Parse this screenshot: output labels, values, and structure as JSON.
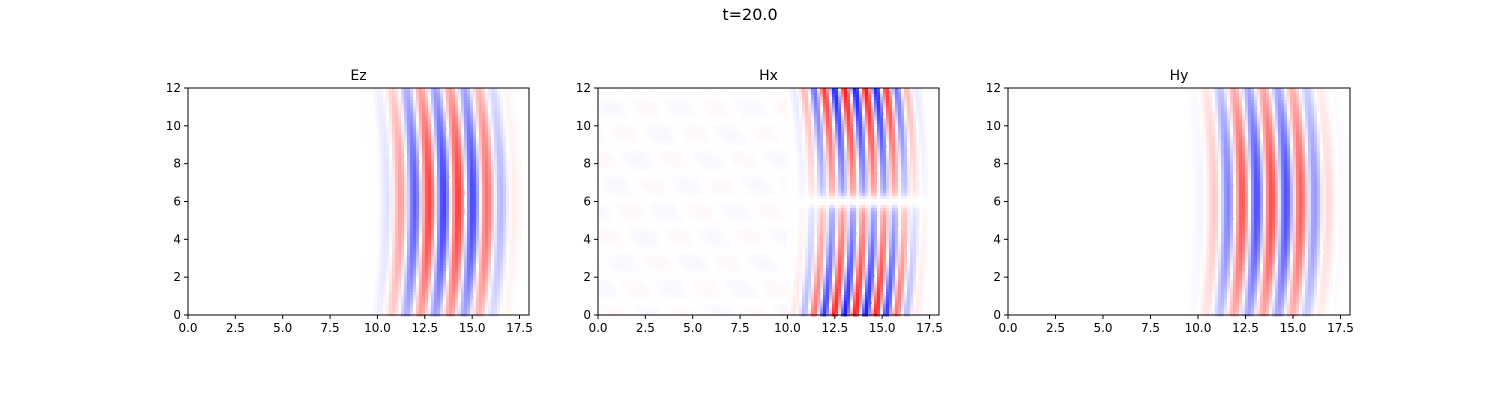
{
  "figure": {
    "suptitle": "t=20.0",
    "colormap": "bwr",
    "colors": {
      "positive": "#ff0000",
      "zero": "#ffffff",
      "negative": "#0000ff"
    }
  },
  "chart_data": [
    {
      "type": "heatmap",
      "title": "Ez",
      "xlabel": "",
      "ylabel": "",
      "xlim": [
        0,
        18
      ],
      "ylim": [
        0,
        12
      ],
      "x_ticks": [
        "0.0",
        "2.5",
        "5.0",
        "7.5",
        "10.0",
        "12.5",
        "15.0",
        "17.5"
      ],
      "y_ticks": [
        "0",
        "2",
        "4",
        "6",
        "8",
        "10",
        "12"
      ],
      "field": {
        "pattern": "curved plane wavefronts centered at y=6",
        "wave_front_x_range": [
          10,
          17.5
        ],
        "wavelength": 1.55,
        "peak_amplitude": 0.75,
        "phase": 0.3,
        "mirror_in_y": false,
        "background_noise": 0
      }
    },
    {
      "type": "heatmap",
      "title": "Hx",
      "xlabel": "",
      "ylabel": "",
      "xlim": [
        0,
        18
      ],
      "ylim": [
        0,
        12
      ],
      "x_ticks": [
        "0.0",
        "2.5",
        "5.0",
        "7.5",
        "10.0",
        "12.5",
        "15.0",
        "17.5"
      ],
      "y_ticks": [
        "0",
        "2",
        "4",
        "6",
        "8",
        "10",
        "12"
      ],
      "field": {
        "pattern": "wavefronts with sign inversion across y=6, strongest at the edges",
        "wave_front_x_range": [
          10.5,
          17.5
        ],
        "wavelength": 1.1,
        "peak_amplitude": 0.9,
        "phase": 0.1,
        "mirror_in_y": true,
        "background_noise": 0.03
      }
    },
    {
      "type": "heatmap",
      "title": "Hy",
      "xlabel": "",
      "ylabel": "",
      "xlim": [
        0,
        18
      ],
      "ylim": [
        0,
        12
      ],
      "x_ticks": [
        "0.0",
        "2.5",
        "5.0",
        "7.5",
        "10.0",
        "12.5",
        "15.0",
        "17.5"
      ],
      "y_ticks": [
        "0",
        "2",
        "4",
        "6",
        "8",
        "10",
        "12"
      ],
      "field": {
        "pattern": "curved plane wavefronts centered at y=6",
        "wave_front_x_range": [
          10,
          17.5
        ],
        "wavelength": 1.55,
        "peak_amplitude": 0.7,
        "phase": 1.9,
        "mirror_in_y": false,
        "background_noise": 0
      }
    }
  ]
}
